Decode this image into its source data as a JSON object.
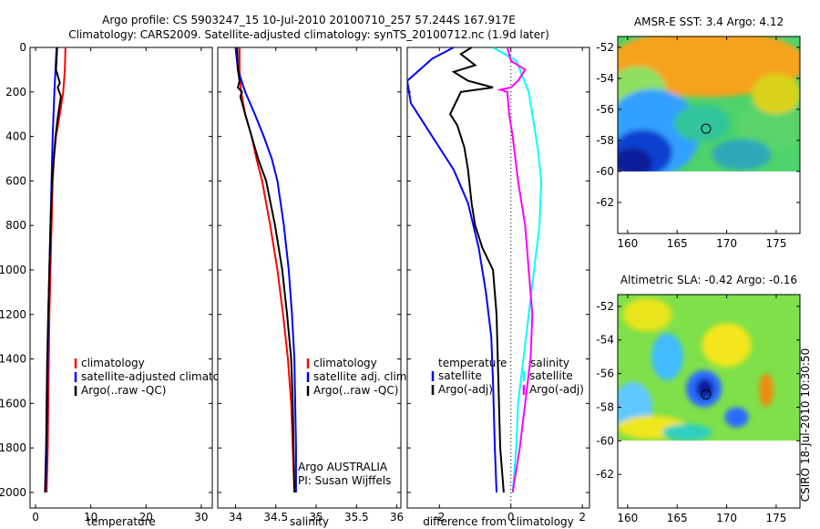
{
  "header": {
    "title_line1": "Argo profile: CS 5903247_15 10-Jul-2010 20100710_257 57.244S 167.917E",
    "title_line2": "Climatology: CARS2009. Satellite-adjusted climatology: synTS_20100712.nc (1.9d later)"
  },
  "credit": {
    "argo": "Argo AUSTRALIA",
    "pi": "PI: Susan Wijffels",
    "side": "CSIRO 18-Jul-2010 10:30:50"
  },
  "colors": {
    "climatology": "#ff0000",
    "satellite": "#0000ff",
    "argo": "#000000",
    "cyan": "#00ffff",
    "magenta": "#ff00ff"
  },
  "chart_data": [
    {
      "type": "line",
      "xlabel": "temperature",
      "xlim": [
        -1,
        32
      ],
      "ylim": [
        0,
        2070
      ],
      "y_reversed": true,
      "xticks": [
        0,
        10,
        20,
        30
      ],
      "yticks": [
        0,
        200,
        400,
        600,
        800,
        1000,
        1200,
        1400,
        1600,
        1800,
        2000
      ],
      "legend": [
        "climatology",
        "satellite-adjusted climatology",
        "Argo(..raw -QC)"
      ],
      "series": [
        {
          "name": "climatology",
          "color": "#ff0000",
          "x": [
            5.4,
            5.3,
            5.0,
            4.4,
            3.7,
            3.3,
            3.1,
            2.9,
            2.7,
            2.5,
            2.4,
            2.3,
            2.2,
            2.1,
            2.0
          ],
          "y": [
            0,
            100,
            200,
            300,
            400,
            500,
            600,
            800,
            1000,
            1200,
            1400,
            1600,
            1800,
            1900,
            2000
          ]
        },
        {
          "name": "satellite-adjusted climatology",
          "color": "#0000ff",
          "x": [
            3.8,
            3.6,
            3.4,
            3.1,
            2.9,
            2.7,
            2.5,
            2.3,
            2.2,
            2.1,
            2.0,
            1.9,
            1.8
          ],
          "y": [
            0,
            100,
            200,
            400,
            600,
            800,
            1000,
            1200,
            1400,
            1600,
            1800,
            1900,
            2000
          ]
        },
        {
          "name": "Argo(..raw -QC)",
          "color": "#000000",
          "x": [
            3.9,
            3.7,
            4.4,
            4.0,
            4.6,
            4.1,
            3.6,
            3.3,
            3.0,
            2.7,
            2.5,
            2.3,
            2.1,
            2.0,
            1.9,
            1.8,
            1.7
          ],
          "y": [
            0,
            100,
            160,
            180,
            220,
            300,
            400,
            500,
            600,
            800,
            1000,
            1200,
            1400,
            1600,
            1800,
            1900,
            2000
          ]
        }
      ]
    },
    {
      "type": "line",
      "xlabel": "salinity",
      "xlim": [
        33.78,
        36.05
      ],
      "ylim": [
        0,
        2070
      ],
      "y_reversed": true,
      "xticks": [
        34,
        34.5,
        35,
        35.5,
        36
      ],
      "xticklabels": [
        "34",
        "34.5",
        "35",
        "35.5",
        "36"
      ],
      "legend": [
        "climatology",
        "satellite adj. clim.",
        "Argo(..raw -QC)"
      ],
      "series": [
        {
          "name": "climatology",
          "color": "#ff0000",
          "x": [
            34.05,
            34.05,
            34.07,
            34.12,
            34.2,
            34.26,
            34.33,
            34.43,
            34.52,
            34.59,
            34.65,
            34.69,
            34.71,
            34.72,
            34.73
          ],
          "y": [
            0,
            100,
            200,
            300,
            400,
            500,
            600,
            800,
            1000,
            1200,
            1400,
            1600,
            1800,
            1900,
            2000
          ]
        },
        {
          "name": "satellite adj. clim.",
          "color": "#0000ff",
          "x": [
            34.0,
            34.03,
            34.12,
            34.24,
            34.35,
            34.45,
            34.52,
            34.6,
            34.66,
            34.7,
            34.73,
            34.74,
            34.75,
            34.75
          ],
          "y": [
            0,
            100,
            200,
            300,
            400,
            500,
            600,
            800,
            1000,
            1200,
            1400,
            1600,
            1800,
            2000
          ]
        },
        {
          "name": "Argo(..raw -QC)",
          "color": "#000000",
          "x": [
            34.02,
            34.03,
            34.05,
            34.03,
            34.08,
            34.06,
            34.12,
            34.2,
            34.28,
            34.38,
            34.49,
            34.58,
            34.64,
            34.69,
            34.71,
            34.72,
            34.73
          ],
          "y": [
            0,
            100,
            150,
            180,
            200,
            220,
            300,
            400,
            500,
            600,
            800,
            1000,
            1200,
            1400,
            1600,
            1800,
            2000
          ]
        }
      ]
    },
    {
      "type": "line",
      "xlabel": "difference from climatology",
      "xlim": [
        -2.9,
        2.2
      ],
      "ylim": [
        0,
        2070
      ],
      "y_reversed": true,
      "xticks": [
        -2,
        0,
        2
      ],
      "zero_line": true,
      "legend_left": {
        "heading": "temperature",
        "items": [
          "satellite",
          "Argo(-adj)"
        ]
      },
      "legend_right": {
        "heading": "salinity",
        "items": [
          "satellite",
          "Argo(-adj)"
        ]
      },
      "series": [
        {
          "name": "temperature satellite",
          "color": "#0000ff",
          "x": [
            -1.6,
            -2.2,
            -2.9,
            -2.8,
            -2.4,
            -2.0,
            -1.6,
            -1.2,
            -0.9,
            -0.7,
            -0.55,
            -0.5,
            -0.45,
            -0.4
          ],
          "y": [
            0,
            50,
            150,
            250,
            350,
            450,
            550,
            700,
            900,
            1100,
            1300,
            1500,
            1800,
            2000
          ]
        },
        {
          "name": "temperature Argo(-adj)",
          "color": "#000000",
          "x": [
            -1.1,
            -1.4,
            -1.0,
            -1.6,
            -1.2,
            -0.5,
            -1.4,
            -1.7,
            -1.5,
            -1.3,
            -1.2,
            -1.1,
            -1.0,
            -0.8,
            -0.5,
            -0.4,
            -0.35,
            -0.3,
            -0.2
          ],
          "y": [
            0,
            30,
            80,
            110,
            150,
            180,
            200,
            300,
            350,
            450,
            550,
            700,
            800,
            900,
            1000,
            1200,
            1500,
            1800,
            2000
          ]
        },
        {
          "name": "salinity satellite",
          "color": "#00ffff",
          "x": [
            -0.5,
            0.15,
            0.3,
            0.5,
            0.6,
            0.75,
            0.85,
            0.8,
            0.65,
            0.5,
            0.35,
            0.2,
            0.15,
            0.1,
            0.05
          ],
          "y": [
            0,
            60,
            120,
            200,
            300,
            450,
            600,
            800,
            1000,
            1200,
            1400,
            1600,
            1800,
            1900,
            2000
          ]
        },
        {
          "name": "salinity Argo(-adj)",
          "color": "#ff00ff",
          "x": [
            -0.1,
            0.0,
            0.4,
            0.2,
            0.0,
            -0.3,
            -0.1,
            -0.05,
            0.05,
            0.2,
            0.4,
            0.5,
            0.6,
            0.55,
            0.4,
            0.25,
            0.15,
            0.1,
            0.05
          ],
          "y": [
            0,
            60,
            100,
            150,
            180,
            190,
            200,
            300,
            400,
            600,
            800,
            1000,
            1200,
            1400,
            1600,
            1800,
            1900,
            1950,
            2000
          ]
        }
      ]
    },
    {
      "type": "heatmap",
      "title": "AMSR-E SST: 3.4 Argo: 4.12",
      "xlim": [
        159,
        177.4
      ],
      "ylim": [
        -64,
        -51.3
      ],
      "xticks": [
        160,
        165,
        170,
        175
      ],
      "yticks": [
        -52,
        -54,
        -56,
        -58,
        -60,
        -62
      ],
      "data_extent_lat": [
        -60,
        -51.3
      ],
      "marker": {
        "lon": 167.917,
        "lat": -57.244
      },
      "patches": [
        {
          "lon": 168,
          "lat": -53,
          "rx": 10,
          "ry": 2.2,
          "color": "#f7a21e"
        },
        {
          "lon": 161,
          "lat": -55,
          "rx": 3,
          "ry": 1.8,
          "color": "#8fdf60"
        },
        {
          "lon": 162.5,
          "lat": -57.5,
          "rx": 4.8,
          "ry": 2.8,
          "color": "#33a0ff"
        },
        {
          "lon": 161.5,
          "lat": -58.8,
          "rx": 3,
          "ry": 1.5,
          "color": "#1040d0"
        },
        {
          "lon": 160.5,
          "lat": -59.4,
          "rx": 2,
          "ry": 0.9,
          "color": "#0a1a9a"
        },
        {
          "lon": 167.5,
          "lat": -56.9,
          "rx": 2.8,
          "ry": 1.2,
          "color": "#30c49a"
        },
        {
          "lon": 174.5,
          "lat": -57,
          "rx": 3.5,
          "ry": 1.8,
          "color": "#5ad36a"
        },
        {
          "lon": 171.5,
          "lat": -58.9,
          "rx": 3,
          "ry": 1,
          "color": "#2fa8b8"
        },
        {
          "lon": 175,
          "lat": -55,
          "rx": 2.5,
          "ry": 1.3,
          "color": "#d8d21a"
        }
      ],
      "background": "#4cd36b"
    },
    {
      "type": "heatmap",
      "title": "Altimetric SLA: -0.42 Argo: -0.16",
      "xlim": [
        159,
        177.4
      ],
      "ylim": [
        -64,
        -51.3
      ],
      "xticks": [
        160,
        165,
        170,
        175
      ],
      "yticks": [
        -52,
        -54,
        -56,
        -58,
        -60,
        -62
      ],
      "data_extent_lat": [
        -60,
        -51.3
      ],
      "marker": {
        "lon": 167.917,
        "lat": -57.244
      },
      "patches": [
        {
          "lon": 162,
          "lat": -52.5,
          "rx": 2.5,
          "ry": 1,
          "color": "#e8e41a"
        },
        {
          "lon": 170,
          "lat": -54.3,
          "rx": 2.5,
          "ry": 1.3,
          "color": "#f4e61a"
        },
        {
          "lon": 164,
          "lat": -55,
          "rx": 1.6,
          "ry": 1.4,
          "color": "#3fbcff"
        },
        {
          "lon": 160.5,
          "lat": -58,
          "rx": 2,
          "ry": 1.5,
          "color": "#60c8ff"
        },
        {
          "lon": 167.7,
          "lat": -56.9,
          "rx": 1.8,
          "ry": 1.1,
          "color": "#2a6bff"
        },
        {
          "lon": 167.8,
          "lat": -56.9,
          "rx": 0.9,
          "ry": 0.6,
          "color": "#0a1a9a"
        },
        {
          "lon": 171,
          "lat": -58.6,
          "rx": 1.2,
          "ry": 0.6,
          "color": "#2a6bff"
        },
        {
          "lon": 174,
          "lat": -57,
          "rx": 0.7,
          "ry": 1,
          "color": "#f08a10"
        },
        {
          "lon": 162.5,
          "lat": -59.2,
          "rx": 3.5,
          "ry": 0.7,
          "color": "#f0e61a"
        },
        {
          "lon": 166,
          "lat": -59.5,
          "rx": 2.5,
          "ry": 0.5,
          "color": "#2fd0c0"
        }
      ],
      "background": "#7fe04a"
    }
  ]
}
